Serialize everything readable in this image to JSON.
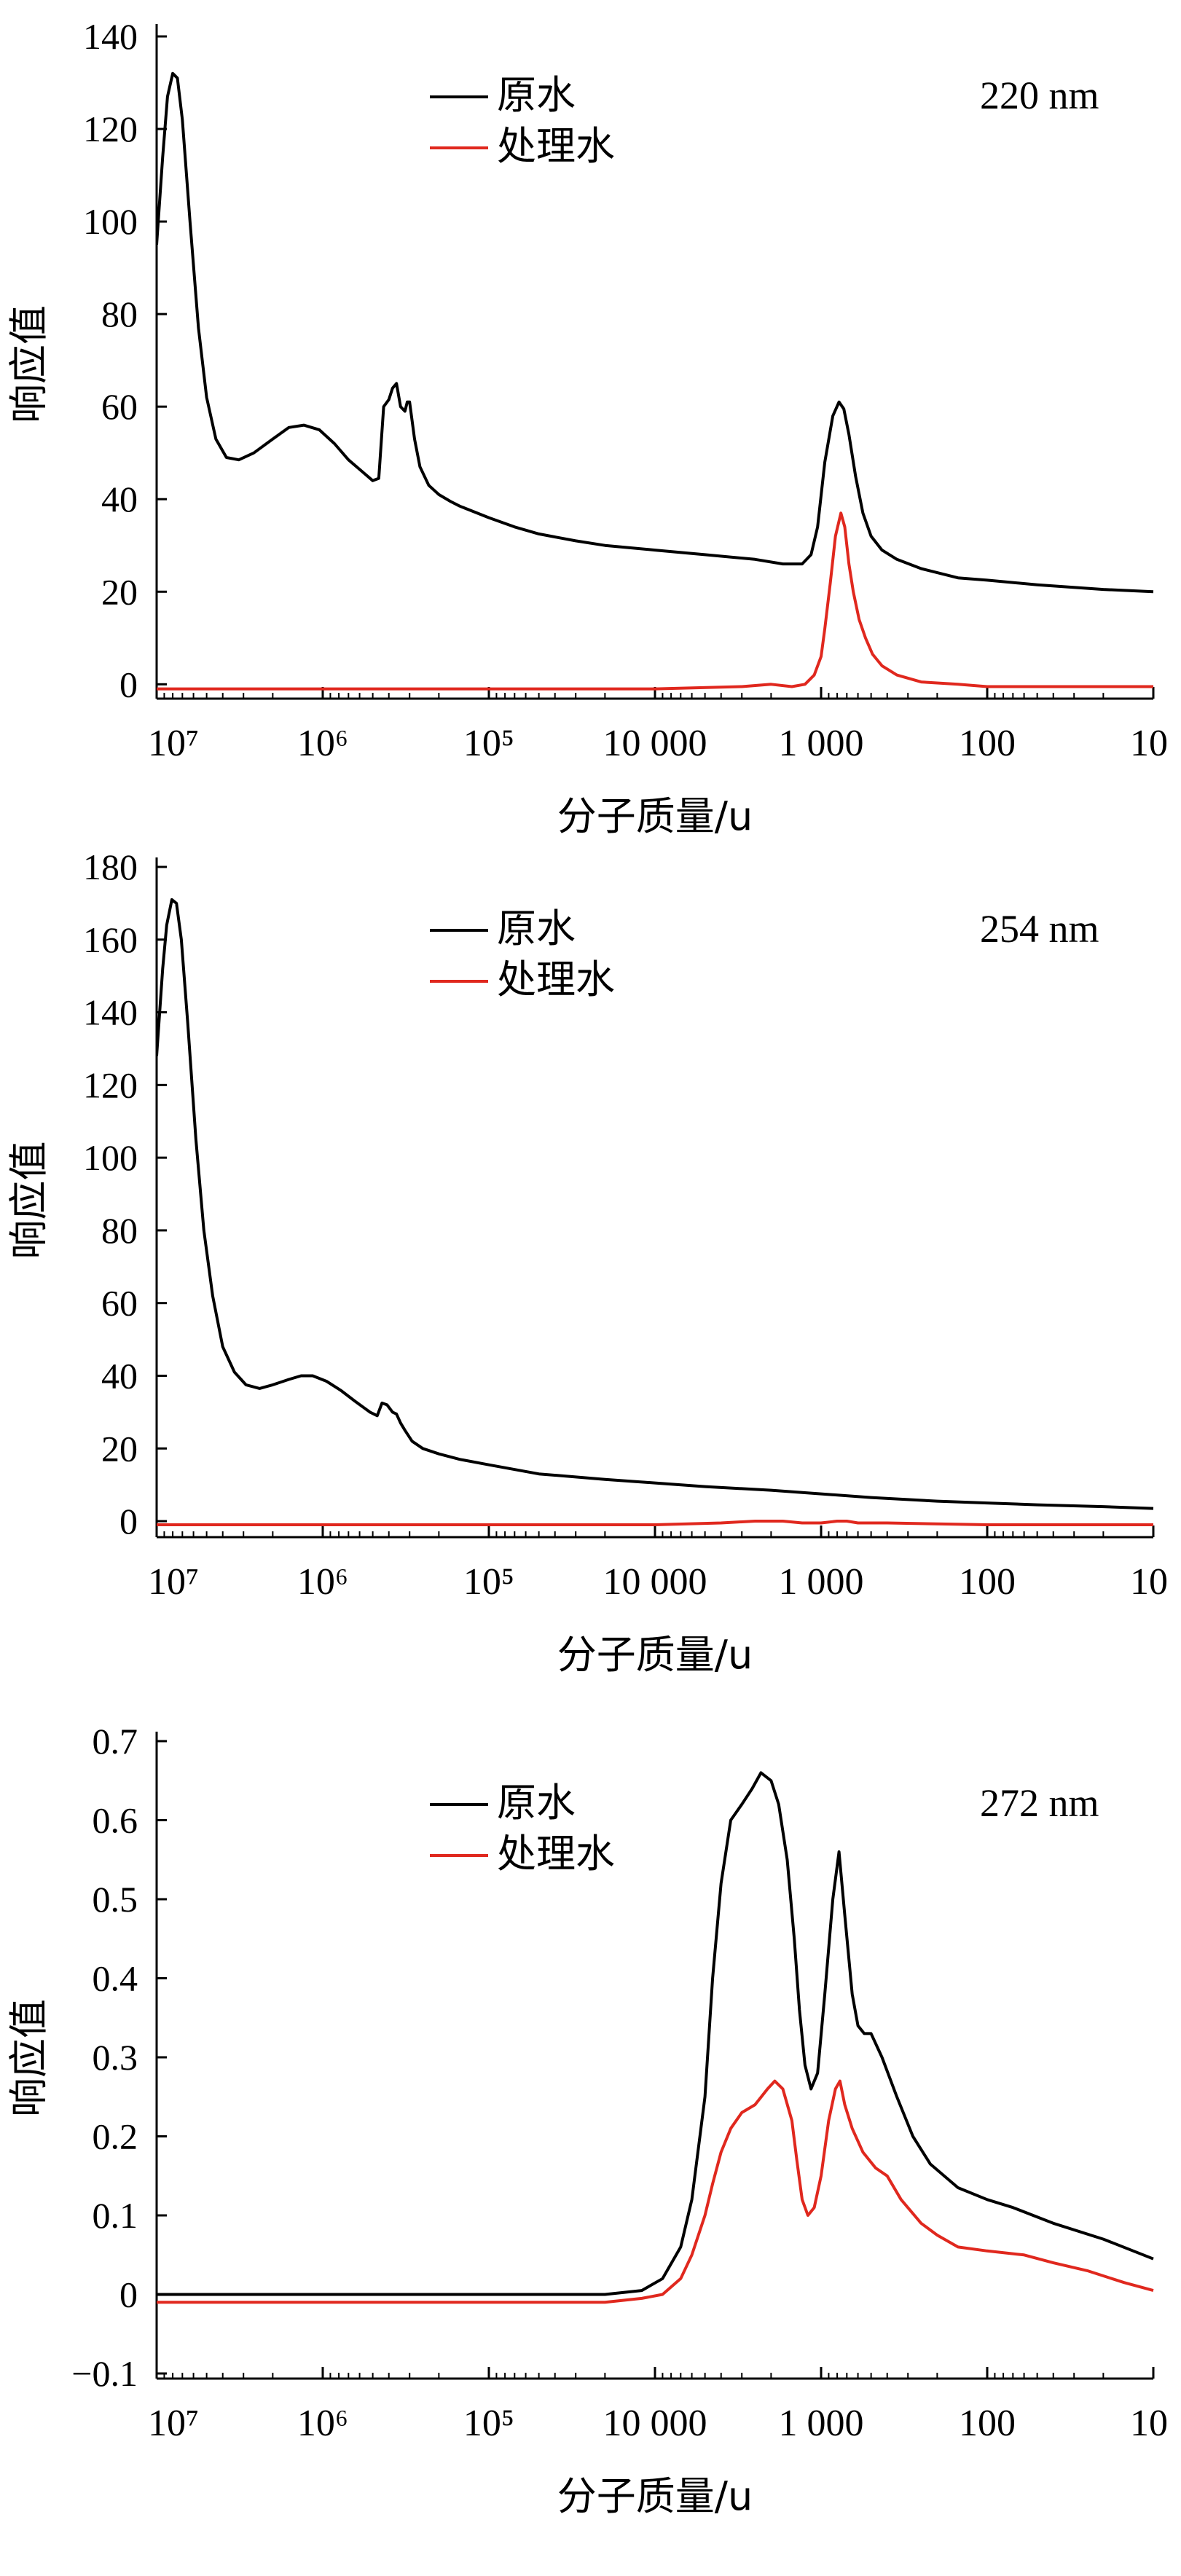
{
  "chart_data": [
    {
      "type": "line",
      "panel_label": "220 nm",
      "xlabel": "分子质量/u",
      "ylabel": "响应值",
      "x_scale": "log",
      "x_reversed": true,
      "xlim": [
        10000000,
        10
      ],
      "ylim": [
        -2,
        140
      ],
      "x_ticks": [
        10000000,
        1000000,
        100000,
        10000,
        1000,
        100,
        10
      ],
      "x_tick_labels": [
        "10⁷",
        "10⁶",
        "10⁵",
        "10 000",
        "1 000",
        "100",
        "10"
      ],
      "y_ticks": [
        0,
        20,
        40,
        60,
        80,
        100,
        120,
        140
      ],
      "y_tick_labels": [
        "0",
        "20",
        "40",
        "60",
        "80",
        "100",
        "120",
        "140"
      ],
      "legend": "top-center",
      "series": [
        {
          "name": "原水",
          "color": "#000000",
          "points": [
            [
              10000000,
              95
            ],
            [
              9200000,
              114
            ],
            [
              8600000,
              127
            ],
            [
              8000000,
              132
            ],
            [
              7500000,
              131
            ],
            [
              7000000,
              122
            ],
            [
              6300000,
              100
            ],
            [
              5600000,
              77
            ],
            [
              5000000,
              62
            ],
            [
              4400000,
              53
            ],
            [
              3800000,
              49
            ],
            [
              3200000,
              48.5
            ],
            [
              2600000,
              50
            ],
            [
              2000000,
              53
            ],
            [
              1600000,
              55.5
            ],
            [
              1300000,
              56
            ],
            [
              1050000,
              55
            ],
            [
              850000,
              52
            ],
            [
              700000,
              48.5
            ],
            [
              580000,
              46
            ],
            [
              500000,
              44
            ],
            [
              460000,
              44.5
            ],
            [
              430000,
              60
            ],
            [
              400000,
              61.5
            ],
            [
              380000,
              64
            ],
            [
              360000,
              65
            ],
            [
              340000,
              60
            ],
            [
              320000,
              59
            ],
            [
              310000,
              61
            ],
            [
              300000,
              61
            ],
            [
              280000,
              53
            ],
            [
              260000,
              47
            ],
            [
              230000,
              43
            ],
            [
              200000,
              41
            ],
            [
              170000,
              39.5
            ],
            [
              150000,
              38.5
            ],
            [
              100000,
              36
            ],
            [
              70000,
              34
            ],
            [
              50000,
              32.5
            ],
            [
              30000,
              31
            ],
            [
              20000,
              30
            ],
            [
              10000,
              29
            ],
            [
              5000,
              28
            ],
            [
              2500,
              27
            ],
            [
              1700,
              26
            ],
            [
              1300,
              26
            ],
            [
              1150,
              28
            ],
            [
              1050,
              34
            ],
            [
              950,
              48
            ],
            [
              850,
              58
            ],
            [
              780,
              61
            ],
            [
              730,
              59.5
            ],
            [
              680,
              54
            ],
            [
              620,
              45
            ],
            [
              560,
              37
            ],
            [
              500,
              32
            ],
            [
              430,
              29
            ],
            [
              350,
              27
            ],
            [
              250,
              25
            ],
            [
              150,
              23
            ],
            [
              100,
              22.5
            ],
            [
              50,
              21.5
            ],
            [
              20,
              20.5
            ],
            [
              10,
              20
            ]
          ]
        },
        {
          "name": "处理水",
          "color": "#e0281e",
          "points": [
            [
              10000000,
              -1
            ],
            [
              1000000,
              -1
            ],
            [
              100000,
              -1
            ],
            [
              10000,
              -1
            ],
            [
              3000,
              -0.5
            ],
            [
              2000,
              0
            ],
            [
              1500,
              -0.5
            ],
            [
              1250,
              0
            ],
            [
              1100,
              2
            ],
            [
              1000,
              6
            ],
            [
              950,
              12
            ],
            [
              880,
              22
            ],
            [
              820,
              32
            ],
            [
              760,
              37
            ],
            [
              720,
              34
            ],
            [
              680,
              26
            ],
            [
              640,
              20
            ],
            [
              590,
              14
            ],
            [
              540,
              10
            ],
            [
              490,
              6.5
            ],
            [
              430,
              4
            ],
            [
              350,
              2
            ],
            [
              250,
              0.5
            ],
            [
              150,
              0
            ],
            [
              100,
              -0.5
            ],
            [
              50,
              -0.5
            ],
            [
              10,
              -0.5
            ]
          ]
        }
      ]
    },
    {
      "type": "line",
      "panel_label": "254 nm",
      "xlabel": "分子质量/u",
      "ylabel": "响应值",
      "x_scale": "log",
      "x_reversed": true,
      "xlim": [
        10000000,
        10
      ],
      "ylim": [
        -3,
        180
      ],
      "x_ticks": [
        10000000,
        1000000,
        100000,
        10000,
        1000,
        100,
        10
      ],
      "x_tick_labels": [
        "10⁷",
        "10⁶",
        "10⁵",
        "10 000",
        "1 000",
        "100",
        "10"
      ],
      "y_ticks": [
        0,
        20,
        40,
        60,
        80,
        100,
        120,
        140,
        160,
        180
      ],
      "y_tick_labels": [
        "0",
        "20",
        "40",
        "60",
        "80",
        "100",
        "120",
        "140",
        "160",
        "180"
      ],
      "legend": "top-center",
      "series": [
        {
          "name": "原水",
          "color": "#000000",
          "points": [
            [
              10000000,
              128
            ],
            [
              9200000,
              152
            ],
            [
              8700000,
              164
            ],
            [
              8100000,
              171
            ],
            [
              7600000,
              170
            ],
            [
              7100000,
              160
            ],
            [
              6500000,
              137
            ],
            [
              5800000,
              105
            ],
            [
              5200000,
              80
            ],
            [
              4600000,
              62
            ],
            [
              4000000,
              48
            ],
            [
              3400000,
              41
            ],
            [
              2900000,
              37.5
            ],
            [
              2400000,
              36.5
            ],
            [
              2000000,
              37.5
            ],
            [
              1600000,
              39
            ],
            [
              1350000,
              40
            ],
            [
              1150000,
              40
            ],
            [
              950000,
              38.5
            ],
            [
              780000,
              36
            ],
            [
              640000,
              33
            ],
            [
              520000,
              30
            ],
            [
              470000,
              29
            ],
            [
              440000,
              32.5
            ],
            [
              410000,
              32
            ],
            [
              380000,
              30
            ],
            [
              360000,
              29.5
            ],
            [
              340000,
              27
            ],
            [
              320000,
              25
            ],
            [
              290000,
              22
            ],
            [
              250000,
              20
            ],
            [
              200000,
              18.5
            ],
            [
              150000,
              17
            ],
            [
              100000,
              15.5
            ],
            [
              50000,
              13
            ],
            [
              20000,
              11.5
            ],
            [
              10000,
              10.5
            ],
            [
              5000,
              9.5
            ],
            [
              2000,
              8.5
            ],
            [
              1000,
              7.5
            ],
            [
              500,
              6.5
            ],
            [
              200,
              5.5
            ],
            [
              100,
              5
            ],
            [
              50,
              4.5
            ],
            [
              20,
              4
            ],
            [
              10,
              3.5
            ]
          ]
        },
        {
          "name": "处理水",
          "color": "#e0281e",
          "points": [
            [
              10000000,
              -1
            ],
            [
              1000000,
              -1
            ],
            [
              100000,
              -1
            ],
            [
              10000,
              -1
            ],
            [
              4000,
              -0.5
            ],
            [
              2500,
              0
            ],
            [
              1700,
              0
            ],
            [
              1300,
              -0.5
            ],
            [
              1000,
              -0.5
            ],
            [
              800,
              0
            ],
            [
              700,
              0
            ],
            [
              600,
              -0.5
            ],
            [
              400,
              -0.5
            ],
            [
              100,
              -1
            ],
            [
              10,
              -1
            ]
          ]
        }
      ]
    },
    {
      "type": "line",
      "panel_label": "272 nm",
      "xlabel": "分子质量/u",
      "ylabel": "响应值",
      "x_scale": "log",
      "x_reversed": true,
      "xlim": [
        10000000,
        10
      ],
      "ylim": [
        -0.1,
        0.7
      ],
      "x_ticks": [
        10000000,
        1000000,
        100000,
        10000,
        1000,
        100,
        10
      ],
      "x_tick_labels": [
        "10⁷",
        "10⁶",
        "10⁵",
        "10 000",
        "1 000",
        "100",
        "10"
      ],
      "y_ticks": [
        -0.1,
        0,
        0.1,
        0.2,
        0.3,
        0.4,
        0.5,
        0.6,
        0.7
      ],
      "y_tick_labels": [
        "−0.1",
        "0",
        "0.1",
        "0.2",
        "0.3",
        "0.4",
        "0.5",
        "0.6",
        "0.7"
      ],
      "legend": "top-center",
      "series": [
        {
          "name": "原水",
          "color": "#000000",
          "points": [
            [
              10000000,
              0
            ],
            [
              1000000,
              0
            ],
            [
              100000,
              0
            ],
            [
              20000,
              0
            ],
            [
              12000,
              0.005
            ],
            [
              9000,
              0.02
            ],
            [
              7000,
              0.06
            ],
            [
              6000,
              0.12
            ],
            [
              5000,
              0.25
            ],
            [
              4500,
              0.4
            ],
            [
              4000,
              0.52
            ],
            [
              3500,
              0.6
            ],
            [
              3000,
              0.62
            ],
            [
              2600,
              0.64
            ],
            [
              2300,
              0.66
            ],
            [
              2000,
              0.65
            ],
            [
              1800,
              0.62
            ],
            [
              1600,
              0.55
            ],
            [
              1450,
              0.45
            ],
            [
              1350,
              0.36
            ],
            [
              1250,
              0.29
            ],
            [
              1150,
              0.26
            ],
            [
              1050,
              0.28
            ],
            [
              950,
              0.38
            ],
            [
              850,
              0.5
            ],
            [
              780,
              0.56
            ],
            [
              720,
              0.48
            ],
            [
              650,
              0.38
            ],
            [
              600,
              0.34
            ],
            [
              550,
              0.33
            ],
            [
              500,
              0.33
            ],
            [
              430,
              0.3
            ],
            [
              350,
              0.25
            ],
            [
              280,
              0.2
            ],
            [
              220,
              0.165
            ],
            [
              150,
              0.135
            ],
            [
              100,
              0.12
            ],
            [
              70,
              0.11
            ],
            [
              40,
              0.09
            ],
            [
              20,
              0.07
            ],
            [
              10,
              0.045
            ]
          ]
        },
        {
          "name": "处理水",
          "color": "#e0281e",
          "points": [
            [
              10000000,
              -0.01
            ],
            [
              1000000,
              -0.01
            ],
            [
              100000,
              -0.01
            ],
            [
              20000,
              -0.01
            ],
            [
              12000,
              -0.005
            ],
            [
              9000,
              0
            ],
            [
              7000,
              0.02
            ],
            [
              6000,
              0.05
            ],
            [
              5000,
              0.1
            ],
            [
              4500,
              0.14
            ],
            [
              4000,
              0.18
            ],
            [
              3500,
              0.21
            ],
            [
              3000,
              0.23
            ],
            [
              2500,
              0.24
            ],
            [
              2100,
              0.26
            ],
            [
              1900,
              0.27
            ],
            [
              1700,
              0.26
            ],
            [
              1500,
              0.22
            ],
            [
              1400,
              0.17
            ],
            [
              1300,
              0.12
            ],
            [
              1200,
              0.1
            ],
            [
              1100,
              0.11
            ],
            [
              1000,
              0.15
            ],
            [
              900,
              0.22
            ],
            [
              820,
              0.26
            ],
            [
              770,
              0.27
            ],
            [
              720,
              0.24
            ],
            [
              650,
              0.21
            ],
            [
              560,
              0.18
            ],
            [
              470,
              0.16
            ],
            [
              400,
              0.15
            ],
            [
              330,
              0.12
            ],
            [
              250,
              0.09
            ],
            [
              200,
              0.075
            ],
            [
              150,
              0.06
            ],
            [
              100,
              0.055
            ],
            [
              60,
              0.05
            ],
            [
              40,
              0.04
            ],
            [
              25,
              0.03
            ],
            [
              15,
              0.015
            ],
            [
              10,
              0.005
            ]
          ]
        }
      ]
    }
  ]
}
